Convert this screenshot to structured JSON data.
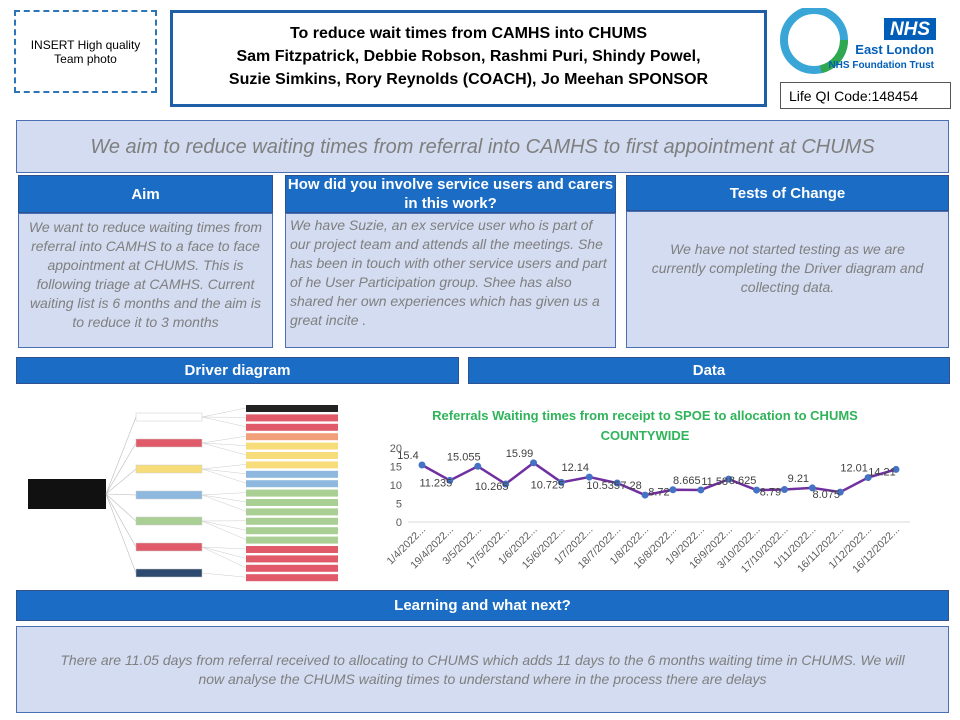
{
  "photo_placeholder": "INSERT High quality Team photo",
  "header": {
    "title": "To reduce wait times from CAMHS into CHUMS",
    "team": [
      "Sam Fitzpatrick, Debbie Robson, Rashmi Puri, Shindy Powel,",
      "Suzie Simkins, Rory Reynolds (COACH), Jo Meehan SPONSOR"
    ]
  },
  "logo": {
    "nhs": "NHS",
    "org": "East London",
    "trust": "NHS Foundation Trust"
  },
  "qi_code": "Life QI Code:148454",
  "aim_statement": "We aim to reduce waiting times from referral into CAMHS  to first appointment at CHUMS",
  "panels": [
    {
      "heading": "Aim",
      "body": "We want to reduce waiting times from referral into CAMHS to a face to face appointment at CHUMS. This is following triage at CAMHS. Current waiting list is 6 months and the aim is to reduce it to 3 months"
    },
    {
      "heading": "How did you involve service users and carers in this work?",
      "body": "We have Suzie, an ex service user who is part of our project team and attends all the meetings.  She has been in touch with other service users and part of he User Participation group.  Shee has also shared her own experiences which has given us a great incite ."
    },
    {
      "heading": "Tests of Change",
      "body": "We have not started testing as we are currently completing the Driver diagram and collecting data."
    }
  ],
  "driver_heading": "Driver diagram",
  "data_heading": "Data",
  "chart_data": {
    "type": "line",
    "title": "Referrals Waiting times from receipt to SPOE to allocation to CHUMS COUNTYWIDE",
    "categories": [
      "1/4/2022...",
      "19/4/2022...",
      "3/5/2022...",
      "17/5/2022...",
      "1/6/2022...",
      "15/6/2022...",
      "1/7/2022...",
      "18/7/2022...",
      "1/8/2022...",
      "16/8/2022...",
      "1/9/2022...",
      "16/9/2022...",
      "3/10/2022...",
      "17/10/2022...",
      "1/11/2022...",
      "16/11/2022...",
      "1/12/2022...",
      "16/12/2022..."
    ],
    "values": [
      15.4,
      11.235,
      15.055,
      10.265,
      15.99,
      10.725,
      12.14,
      10.535,
      7.28,
      8.72,
      8.665,
      11.58,
      8.625,
      8.79,
      9.21,
      8.075,
      12.01,
      14.21
    ],
    "color": "#7030a0",
    "marker_color": "#4472c4",
    "ylim": [
      0,
      20
    ],
    "yticks": [
      0,
      5,
      10,
      15,
      20
    ]
  },
  "learning": {
    "heading": "Learning and what next?",
    "body": "There are 11.05 days from referral received to allocating to CHUMS which adds 11 days to the 6 months waiting time in CHUMS.  We will now analyse the CHUMS waiting times to understand where in the process there are delays"
  }
}
